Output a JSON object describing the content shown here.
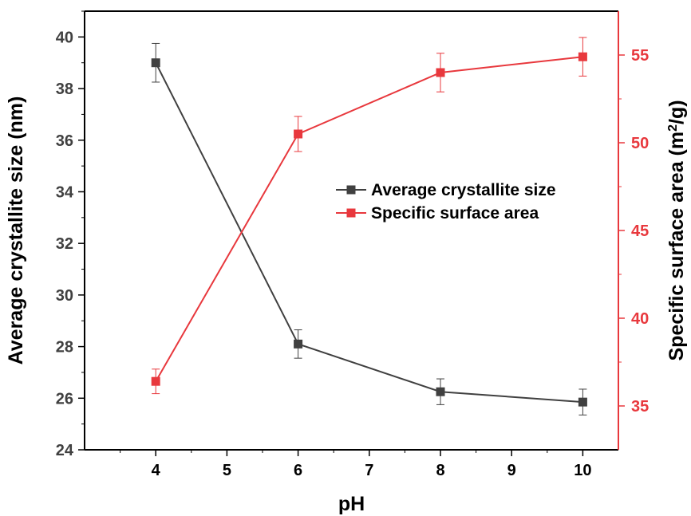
{
  "chart_data": {
    "type": "line",
    "title": "",
    "xlabel": "pH",
    "ylabel_left": "Average crystallite size (nm)",
    "ylabel_right": "Specific surface area (m²/g)",
    "ylabel_right_parts": {
      "main": "Specific surface area (m",
      "sup": "2",
      "tail": "/g)"
    },
    "x": [
      4,
      6,
      8,
      10
    ],
    "xlim": [
      3,
      10.5
    ],
    "xticks": [
      4,
      5,
      6,
      7,
      8,
      9,
      10
    ],
    "xtick_labels": [
      "4",
      "5",
      "6",
      "7",
      "8",
      "9",
      "10"
    ],
    "ylim_left": [
      24,
      41
    ],
    "yticks_left": [
      24,
      26,
      28,
      30,
      32,
      34,
      36,
      38,
      40
    ],
    "ytick_labels_left": [
      "24",
      "26",
      "28",
      "30",
      "32",
      "34",
      "36",
      "38",
      "40"
    ],
    "ylim_right": [
      32.5,
      57.5
    ],
    "yticks_right": [
      35,
      40,
      45,
      50,
      55
    ],
    "ytick_labels_right": [
      "35",
      "40",
      "45",
      "50",
      "55"
    ],
    "series": [
      {
        "name": "Average crystallite size",
        "axis": "left",
        "color": "#404040",
        "values": [
          39.0,
          28.1,
          26.25,
          25.85
        ],
        "errors": [
          0.75,
          0.55,
          0.5,
          0.5
        ]
      },
      {
        "name": "Specific surface area",
        "axis": "right",
        "color": "#e8383d",
        "values": [
          36.4,
          50.5,
          54.0,
          54.9
        ],
        "errors": [
          0.7,
          1.0,
          1.1,
          1.1
        ]
      }
    ],
    "legend": {
      "position": "center-right",
      "entries": [
        "Average crystallite size",
        "Specific surface area"
      ]
    },
    "colors": {
      "left_axis": "#404040",
      "right_axis": "#e8383d",
      "frame": "#000000"
    }
  }
}
